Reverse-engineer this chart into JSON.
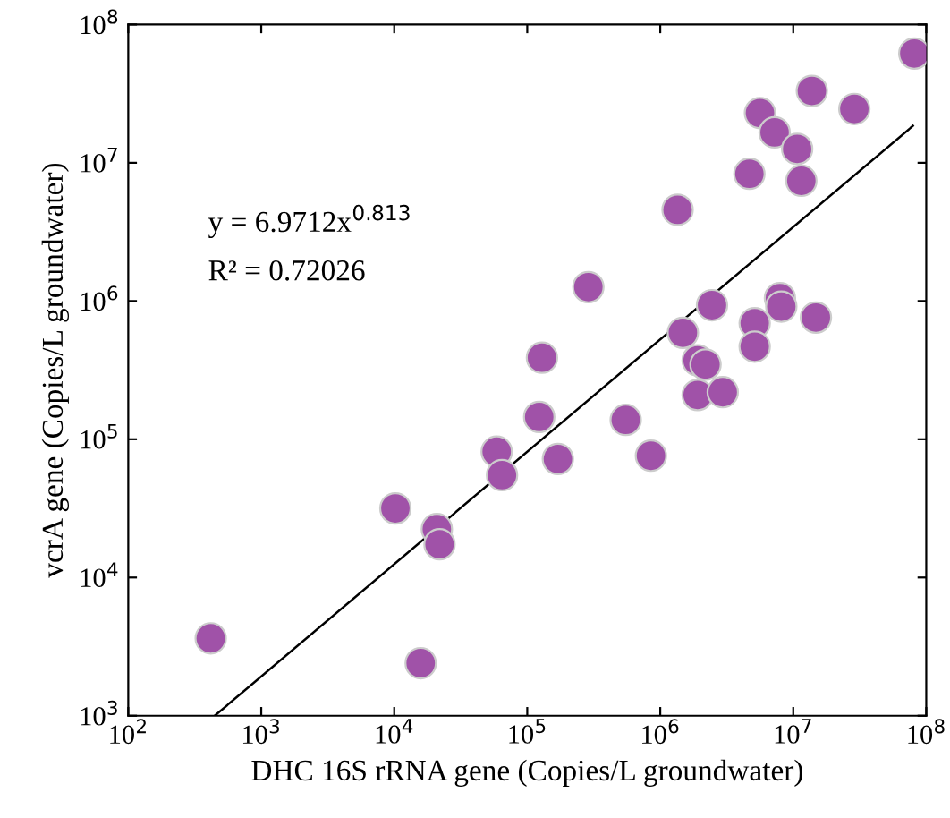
{
  "chart_data": {
    "type": "scatter",
    "xlabel": "DHC 16S rRNA gene (Copies/L groundwater)",
    "ylabel": "vcrA gene (Copies/L groundwater)",
    "log": "xy",
    "grid": false,
    "legend": false,
    "xlim": [
      100,
      100000000
    ],
    "ylim": [
      1000,
      100000000
    ],
    "xticks": [
      {
        "value": 100,
        "label": "10$^{2}$"
      },
      {
        "value": 1000,
        "label": "10$^{3}$"
      },
      {
        "value": 10000,
        "label": "10$^{4}$"
      },
      {
        "value": 100000,
        "label": "10$^{5}$"
      },
      {
        "value": 1000000,
        "label": "10$^{6}$"
      },
      {
        "value": 10000000,
        "label": "10$^{7}$"
      },
      {
        "value": 100000000,
        "label": "10$^{8}$"
      }
    ],
    "yticks": [
      {
        "value": 1000,
        "label": "10$^{3}$"
      },
      {
        "value": 10000,
        "label": "10$^{4}$"
      },
      {
        "value": 100000,
        "label": "10$^{5}$"
      },
      {
        "value": 1000000,
        "label": "10$^{6}$"
      },
      {
        "value": 10000000,
        "label": "10$^{7}$"
      },
      {
        "value": 100000000,
        "label": "10$^{8}$"
      }
    ],
    "annotations": [
      "y = 6.9712x$^{0.813}$",
      "R² = 0.72026"
    ],
    "series": [
      {
        "marker": "circle",
        "color": "#a052a8",
        "x": [
          417,
          10200,
          20900,
          21900,
          15800,
          58900,
          64600,
          123000,
          129000,
          170000,
          288000,
          550000,
          851000,
          1350000,
          1480000,
          1910000,
          1910000,
          2190000,
          2450000,
          2950000,
          4680000,
          5130000,
          5130000,
          5620000,
          7240000,
          7940000,
          8130000,
          10700000,
          11500000,
          13800000,
          14800000,
          28800000,
          81300000
        ],
        "values": [
          3630,
          31600,
          22400,
          17400,
          2400,
          81300,
          55000,
          145000,
          389000,
          72000,
          1260000,
          138000,
          76000,
          4570000,
          589000,
          372000,
          209000,
          347000,
          933000,
          219000,
          8320000,
          692000,
          468000,
          22900000,
          16600000,
          1050000,
          912000,
          12600000,
          7410000,
          33100000,
          759000,
          24500000,
          61700000
        ]
      },
      {
        "type": "line",
        "marker": "none",
        "color": "#000000",
        "x": [
          447,
          79400000
        ],
        "values": [
          1000,
          18500000
        ]
      }
    ]
  }
}
